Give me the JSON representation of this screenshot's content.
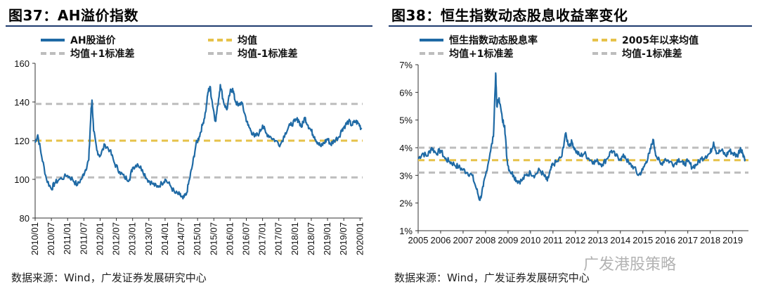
{
  "panels": {
    "left": {
      "title": "图37：AH溢价指数",
      "source": "数据来源：Wind，广发证券发展研究中心"
    },
    "right": {
      "title": "图38：恒生指数动态股息收益率变化",
      "source": "数据来源：Wind，广发证券发展研究中心"
    }
  },
  "watermark": {
    "text": "广发港股策略"
  },
  "chart_data": [
    {
      "type": "line",
      "ylim": [
        80,
        160
      ],
      "yticks": [
        "80",
        "100",
        "120",
        "140",
        "160"
      ],
      "xticks": [
        "2010/01",
        "2010/07",
        "2011/01",
        "2011/07",
        "2012/01",
        "2012/07",
        "2013/01",
        "2013/07",
        "2014/01",
        "2014/07",
        "2015/01",
        "2015/07",
        "2016/01",
        "2016/07",
        "2017/01",
        "2017/07",
        "2018/01",
        "2018/07",
        "2019/01",
        "2019/07",
        "2020/01"
      ],
      "legend": {
        "series": "AH股溢价",
        "mean": "均值",
        "upper": "均值+1标准差",
        "lower": "均值-1标准差"
      },
      "colors": {
        "series": "#1f6aa5",
        "mean": "#e6c24a",
        "band": "#bdbdbd"
      },
      "mean": 120,
      "upper": 139,
      "lower": 101,
      "series_points": [
        [
          2010.0,
          119
        ],
        [
          2010.08,
          123
        ],
        [
          2010.2,
          112
        ],
        [
          2010.35,
          100
        ],
        [
          2010.5,
          95
        ],
        [
          2010.6,
          98
        ],
        [
          2010.75,
          100
        ],
        [
          2011.0,
          102
        ],
        [
          2011.15,
          100
        ],
        [
          2011.3,
          97
        ],
        [
          2011.45,
          101
        ],
        [
          2011.55,
          105
        ],
        [
          2011.65,
          110
        ],
        [
          2011.72,
          135
        ],
        [
          2011.75,
          141
        ],
        [
          2011.8,
          125
        ],
        [
          2011.9,
          115
        ],
        [
          2012.0,
          112
        ],
        [
          2012.15,
          118
        ],
        [
          2012.3,
          115
        ],
        [
          2012.45,
          108
        ],
        [
          2012.6,
          104
        ],
        [
          2012.75,
          101
        ],
        [
          2012.9,
          100
        ],
        [
          2013.0,
          106
        ],
        [
          2013.15,
          108
        ],
        [
          2013.3,
          105
        ],
        [
          2013.45,
          100
        ],
        [
          2013.6,
          98
        ],
        [
          2013.75,
          96
        ],
        [
          2013.9,
          98
        ],
        [
          2014.0,
          100
        ],
        [
          2014.15,
          97
        ],
        [
          2014.3,
          93
        ],
        [
          2014.45,
          92
        ],
        [
          2014.55,
          90
        ],
        [
          2014.65,
          92
        ],
        [
          2014.75,
          100
        ],
        [
          2014.85,
          108
        ],
        [
          2014.95,
          118
        ],
        [
          2015.05,
          122
        ],
        [
          2015.15,
          128
        ],
        [
          2015.25,
          135
        ],
        [
          2015.32,
          145
        ],
        [
          2015.38,
          148
        ],
        [
          2015.45,
          140
        ],
        [
          2015.55,
          130
        ],
        [
          2015.62,
          138
        ],
        [
          2015.7,
          149
        ],
        [
          2015.8,
          140
        ],
        [
          2015.9,
          136
        ],
        [
          2016.0,
          145
        ],
        [
          2016.08,
          147
        ],
        [
          2016.15,
          141
        ],
        [
          2016.25,
          138
        ],
        [
          2016.35,
          140
        ],
        [
          2016.45,
          134
        ],
        [
          2016.55,
          128
        ],
        [
          2016.65,
          125
        ],
        [
          2016.75,
          122
        ],
        [
          2016.9,
          124
        ],
        [
          2017.0,
          128
        ],
        [
          2017.1,
          124
        ],
        [
          2017.25,
          122
        ],
        [
          2017.4,
          120
        ],
        [
          2017.55,
          118
        ],
        [
          2017.7,
          124
        ],
        [
          2017.85,
          128
        ],
        [
          2018.0,
          130
        ],
        [
          2018.1,
          131
        ],
        [
          2018.2,
          127
        ],
        [
          2018.3,
          132
        ],
        [
          2018.4,
          128
        ],
        [
          2018.5,
          125
        ],
        [
          2018.6,
          122
        ],
        [
          2018.7,
          119
        ],
        [
          2018.8,
          117
        ],
        [
          2018.9,
          119
        ],
        [
          2019.0,
          121
        ],
        [
          2019.1,
          118
        ],
        [
          2019.2,
          120
        ],
        [
          2019.35,
          122
        ],
        [
          2019.45,
          126
        ],
        [
          2019.55,
          128
        ],
        [
          2019.65,
          130
        ],
        [
          2019.75,
          128
        ],
        [
          2019.85,
          130
        ],
        [
          2019.95,
          129
        ],
        [
          2020.05,
          126
        ]
      ]
    },
    {
      "type": "line",
      "ylim": [
        1,
        7
      ],
      "yticks": [
        "1%",
        "2%",
        "3%",
        "4%",
        "5%",
        "6%",
        "7%"
      ],
      "xticks": [
        "2005",
        "2006",
        "2007",
        "2008",
        "2009",
        "2010",
        "2011",
        "2012",
        "2013",
        "2014",
        "2015",
        "2016",
        "2017",
        "2018",
        "2019"
      ],
      "legend": {
        "series": "恒生指数动态股息率",
        "mean": "2005年以来均值",
        "upper": "均值+1标准差",
        "lower": "均值-1标准差"
      },
      "colors": {
        "series": "#1f6aa5",
        "mean": "#e6c24a",
        "band": "#bdbdbd"
      },
      "mean": 3.55,
      "upper": 4.0,
      "lower": 3.1,
      "series_points": [
        [
          2005.0,
          3.6
        ],
        [
          2005.2,
          3.8
        ],
        [
          2005.4,
          3.7
        ],
        [
          2005.6,
          4.0
        ],
        [
          2005.8,
          3.8
        ],
        [
          2006.0,
          3.9
        ],
        [
          2006.2,
          3.6
        ],
        [
          2006.4,
          3.5
        ],
        [
          2006.6,
          3.4
        ],
        [
          2006.8,
          3.3
        ],
        [
          2007.0,
          3.2
        ],
        [
          2007.2,
          3.1
        ],
        [
          2007.4,
          3.0
        ],
        [
          2007.6,
          2.5
        ],
        [
          2007.75,
          2.1
        ],
        [
          2007.9,
          2.6
        ],
        [
          2008.0,
          3.0
        ],
        [
          2008.2,
          3.8
        ],
        [
          2008.35,
          4.4
        ],
        [
          2008.45,
          6.7
        ],
        [
          2008.5,
          5.5
        ],
        [
          2008.6,
          5.8
        ],
        [
          2008.75,
          5.0
        ],
        [
          2008.85,
          4.8
        ],
        [
          2008.95,
          3.6
        ],
        [
          2009.05,
          3.2
        ],
        [
          2009.25,
          3.0
        ],
        [
          2009.4,
          2.8
        ],
        [
          2009.6,
          2.8
        ],
        [
          2009.8,
          3.0
        ],
        [
          2010.0,
          3.1
        ],
        [
          2010.2,
          3.0
        ],
        [
          2010.4,
          3.2
        ],
        [
          2010.6,
          3.0
        ],
        [
          2010.75,
          2.8
        ],
        [
          2010.9,
          3.2
        ],
        [
          2011.0,
          3.4
        ],
        [
          2011.2,
          3.5
        ],
        [
          2011.4,
          3.7
        ],
        [
          2011.55,
          4.5
        ],
        [
          2011.7,
          4.1
        ],
        [
          2011.85,
          4.2
        ],
        [
          2012.0,
          3.9
        ],
        [
          2012.2,
          3.7
        ],
        [
          2012.4,
          3.8
        ],
        [
          2012.6,
          3.6
        ],
        [
          2012.8,
          3.5
        ],
        [
          2013.0,
          3.5
        ],
        [
          2013.2,
          3.4
        ],
        [
          2013.4,
          3.6
        ],
        [
          2013.6,
          3.9
        ],
        [
          2013.8,
          3.7
        ],
        [
          2014.0,
          3.6
        ],
        [
          2014.2,
          3.7
        ],
        [
          2014.4,
          3.4
        ],
        [
          2014.6,
          3.3
        ],
        [
          2014.8,
          3.0
        ],
        [
          2015.0,
          3.2
        ],
        [
          2015.15,
          3.5
        ],
        [
          2015.3,
          3.8
        ],
        [
          2015.45,
          4.3
        ],
        [
          2015.6,
          3.7
        ],
        [
          2015.8,
          3.4
        ],
        [
          2016.0,
          3.6
        ],
        [
          2016.2,
          3.5
        ],
        [
          2016.4,
          3.4
        ],
        [
          2016.6,
          3.6
        ],
        [
          2016.8,
          3.4
        ],
        [
          2017.0,
          3.5
        ],
        [
          2017.2,
          3.3
        ],
        [
          2017.4,
          3.4
        ],
        [
          2017.6,
          3.6
        ],
        [
          2017.8,
          3.7
        ],
        [
          2018.0,
          3.8
        ],
        [
          2018.15,
          4.2
        ],
        [
          2018.3,
          3.8
        ],
        [
          2018.5,
          3.9
        ],
        [
          2018.7,
          3.7
        ],
        [
          2018.85,
          3.9
        ],
        [
          2019.0,
          3.8
        ],
        [
          2019.2,
          3.7
        ],
        [
          2019.35,
          4.0
        ],
        [
          2019.45,
          3.8
        ],
        [
          2019.55,
          3.6
        ]
      ]
    }
  ]
}
